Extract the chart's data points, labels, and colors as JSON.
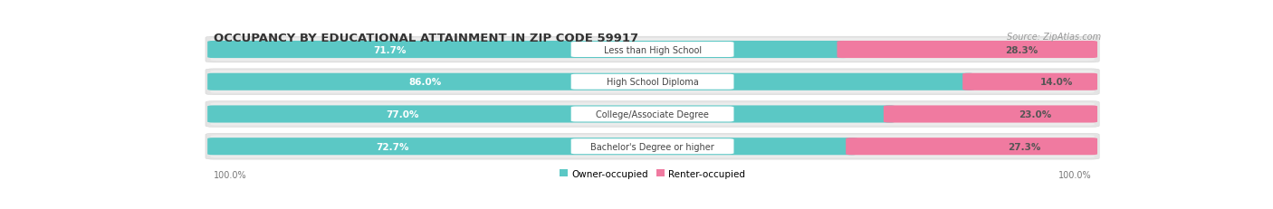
{
  "title": "OCCUPANCY BY EDUCATIONAL ATTAINMENT IN ZIP CODE 59917",
  "source": "Source: ZipAtlas.com",
  "categories": [
    "Less than High School",
    "High School Diploma",
    "College/Associate Degree",
    "Bachelor's Degree or higher"
  ],
  "owner_pct": [
    71.7,
    86.0,
    77.0,
    72.7
  ],
  "renter_pct": [
    28.3,
    14.0,
    23.0,
    27.3
  ],
  "owner_color": "#5bc8c5",
  "renter_color": "#f07aa0",
  "bg_color": "#ffffff",
  "row_bg_color": "#e8e8e8",
  "label_color_owner": "#ffffff",
  "label_color_renter": "#555555",
  "axis_label_left": "100.0%",
  "axis_label_right": "100.0%",
  "legend_owner": "Owner-occupied",
  "legend_renter": "Renter-occupied",
  "title_fontsize": 9.5,
  "source_fontsize": 7,
  "bar_label_fontsize": 7.5,
  "category_fontsize": 7,
  "legend_fontsize": 7.5,
  "outer_bg": "#f2f2f2"
}
